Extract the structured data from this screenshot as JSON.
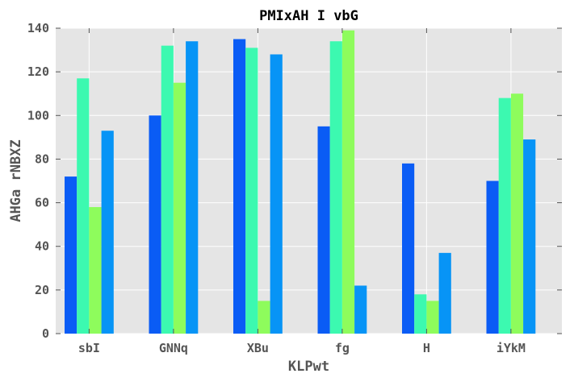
{
  "chart_data": {
    "type": "bar",
    "title": "PMIxAH I vbG",
    "xlabel": "KLPwt",
    "ylabel": "AHGa rNBXZ",
    "categories": [
      "sbI",
      "GNNq",
      "XBu",
      "fg",
      "H",
      "iYkM"
    ],
    "series": [
      {
        "values": [
          72,
          100,
          135,
          95,
          78,
          70
        ],
        "color": "#0a5cf5"
      },
      {
        "values": [
          117,
          132,
          131,
          134,
          18,
          108
        ],
        "color": "#3cf9b0"
      },
      {
        "values": [
          58,
          115,
          15,
          139,
          15,
          110
        ],
        "color": "#8efc5c"
      },
      {
        "values": [
          93,
          134,
          128,
          22,
          37,
          89
        ],
        "color": "#0794f6"
      }
    ],
    "ylim": [
      0,
      140
    ],
    "yticks": [
      0,
      20,
      40,
      60,
      80,
      100,
      120,
      140
    ],
    "grid": true,
    "background_color": "#e5e5e5",
    "grid_color": "#ffffff"
  }
}
